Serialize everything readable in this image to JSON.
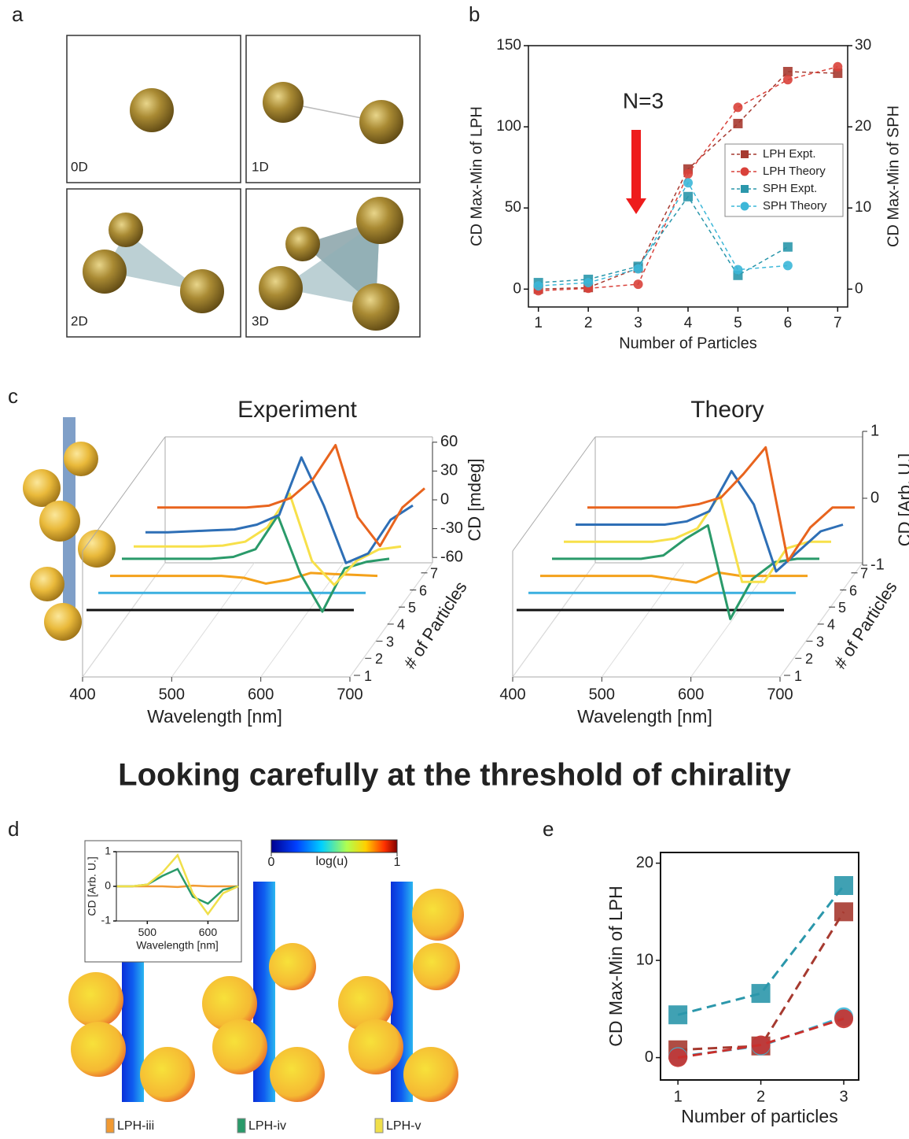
{
  "panel_labels": [
    "a",
    "b",
    "c",
    "d",
    "e"
  ],
  "headline": "Looking carefully at the threshold of chirality",
  "panel_a": {
    "labels": [
      "0D",
      "1D",
      "2D",
      "3D"
    ]
  },
  "panel_d": {
    "colorbar": {
      "ticks": [
        0,
        1
      ],
      "label": "log(u)"
    }
  },
  "chart_data": [
    {
      "type": "line",
      "xlabel": "Number of Particles",
      "ylabel": "CD Max-Min of LPH",
      "y2label": "CD Max-Min of SPH",
      "annotation": "N=3",
      "legend": "right",
      "x": [
        1,
        2,
        3,
        4,
        5,
        6,
        7
      ],
      "xlim": [
        0.8,
        7.2
      ],
      "xticks": [
        1,
        2,
        3,
        4,
        5,
        6,
        7
      ],
      "ylim": [
        -11,
        150
      ],
      "yticks": [
        0,
        50,
        100,
        150
      ],
      "y2lim": [
        -2.2,
        30
      ],
      "y2ticks": [
        0,
        10,
        20,
        30
      ],
      "series": [
        {
          "name": "LPH Expt.",
          "color": "#a63a30",
          "marker": "square",
          "values": [
            0,
            1,
            13,
            74,
            102,
            134,
            133
          ]
        },
        {
          "name": "LPH Theory",
          "color": "#d9413a",
          "marker": "circle",
          "values": [
            -1,
            0.5,
            3,
            71,
            112,
            129,
            137
          ]
        },
        {
          "name": "SPH Expt.",
          "color": "#2b97ab",
          "marker": "square",
          "axis": "y2",
          "values": [
            0.8,
            1.2,
            2.8,
            11.4,
            1.7,
            5.2,
            null
          ]
        },
        {
          "name": "SPH Theory",
          "color": "#3cb7d8",
          "marker": "circle",
          "axis": "y2",
          "values": [
            0.4,
            0.8,
            2.5,
            13.1,
            2.4,
            2.9,
            null
          ]
        }
      ]
    },
    {
      "type": "line3d",
      "title": "Experiment",
      "xlabel": "Wavelength [nm]",
      "ylabel": "CD [mdeg]",
      "zlabel": "# of Particles",
      "x": [
        400,
        425,
        450,
        475,
        500,
        525,
        550,
        575,
        600,
        625,
        650,
        675,
        700
      ],
      "xticks": [
        400,
        500,
        600,
        700
      ],
      "yticks": [
        -60,
        -30,
        0,
        30,
        60
      ],
      "zticks": [
        1,
        2,
        3,
        4,
        5,
        6,
        7
      ],
      "series": [
        {
          "color": "#111111",
          "values": [
            0,
            0,
            0,
            0,
            0,
            0,
            0,
            0,
            0,
            0,
            0,
            0,
            0
          ]
        },
        {
          "color": "#3bb0e0",
          "values": [
            0,
            0,
            0,
            0,
            0,
            0,
            0,
            0,
            0,
            0,
            0,
            0,
            0
          ]
        },
        {
          "color": "#f4a11a",
          "values": [
            0,
            0,
            0,
            0,
            0,
            0,
            -2,
            -8,
            -4,
            3,
            2,
            1,
            0
          ]
        },
        {
          "color": "#2a9a6a",
          "values": [
            0,
            0,
            0,
            0,
            0,
            2,
            10,
            45,
            -15,
            -55,
            -10,
            -3,
            0
          ]
        },
        {
          "color": "#f7e04a",
          "values": [
            -5,
            -5,
            -5,
            -5,
            -4,
            0,
            15,
            50,
            -20,
            -45,
            -20,
            -8,
            -5
          ]
        },
        {
          "color": "#2e6fb6",
          "values": [
            -8,
            -8,
            -7,
            -6,
            -5,
            0,
            10,
            70,
            20,
            -40,
            -30,
            5,
            20
          ]
        },
        {
          "color": "#e8641e",
          "values": [
            0,
            0,
            0,
            0,
            0,
            2,
            10,
            30,
            65,
            -10,
            -40,
            0,
            20
          ]
        }
      ]
    },
    {
      "type": "line3d",
      "title": "Theory",
      "xlabel": "Wavelength [nm]",
      "ylabel": "CD [Arb. U.]",
      "zlabel": "# of Particles",
      "x": [
        400,
        425,
        450,
        475,
        500,
        525,
        550,
        575,
        600,
        625,
        650,
        675,
        700
      ],
      "xticks": [
        400,
        500,
        600,
        700
      ],
      "yticks": [
        -1,
        0,
        1
      ],
      "zticks": [
        1,
        2,
        3,
        4,
        5,
        6,
        7
      ],
      "series": [
        {
          "color": "#111111",
          "values": [
            0,
            0,
            0,
            0,
            0,
            0,
            0,
            0,
            0,
            0,
            0,
            0,
            0
          ]
        },
        {
          "color": "#3bb0e0",
          "values": [
            0,
            0,
            0,
            0,
            0,
            0,
            0,
            0,
            0,
            0,
            0,
            0,
            0
          ]
        },
        {
          "color": "#f4a11a",
          "values": [
            0,
            0,
            0,
            0,
            0,
            0,
            -0.05,
            -0.1,
            0.05,
            0,
            0,
            0,
            0
          ]
        },
        {
          "color": "#2a9a6a",
          "values": [
            0,
            0,
            0,
            0,
            0,
            0.05,
            0.3,
            0.5,
            -0.9,
            -0.3,
            -0.05,
            0,
            0
          ]
        },
        {
          "color": "#f7e04a",
          "values": [
            0,
            0,
            0,
            0,
            0,
            0.05,
            0.2,
            0.7,
            -0.6,
            -0.6,
            -0.1,
            0,
            0
          ]
        },
        {
          "color": "#2e6fb6",
          "values": [
            0,
            0,
            0,
            0,
            0,
            0.05,
            0.2,
            0.8,
            0.3,
            -0.7,
            -0.4,
            -0.1,
            0
          ]
        },
        {
          "color": "#e8641e",
          "values": [
            0,
            0,
            0,
            0,
            0,
            0.05,
            0.15,
            0.5,
            0.9,
            -0.8,
            -0.3,
            0,
            0
          ]
        }
      ]
    },
    {
      "type": "line",
      "xlabel": "Wavelength [nm]",
      "ylabel": "CD [Arb. U.]",
      "x": [
        450,
        475,
        500,
        525,
        550,
        575,
        600,
        625,
        650
      ],
      "xlim": [
        449,
        650
      ],
      "xticks": [
        500,
        600
      ],
      "ylim": [
        -1,
        1
      ],
      "yticks": [
        -1,
        0,
        1
      ],
      "series": [
        {
          "name": "LPH-iii",
          "color": "#f19a33",
          "values": [
            0,
            0,
            0,
            0,
            -0.02,
            0.02,
            0,
            0,
            0
          ]
        },
        {
          "name": "LPH-iv",
          "color": "#2a9a6a",
          "values": [
            0,
            0,
            0.05,
            0.3,
            0.5,
            -0.3,
            -0.5,
            -0.1,
            0
          ]
        },
        {
          "name": "LPH-v",
          "color": "#f0df4a",
          "values": [
            0,
            0,
            0.05,
            0.4,
            0.9,
            -0.2,
            -0.8,
            -0.2,
            0
          ]
        }
      ]
    },
    {
      "type": "line",
      "xlabel": "Number of particles",
      "ylabel": "CD Max-Min of LPH",
      "x": [
        1,
        2,
        3
      ],
      "xlim": [
        0.79,
        3.18
      ],
      "xticks": [
        1,
        2,
        3
      ],
      "ylim": [
        -2.3,
        21.1
      ],
      "yticks": [
        0,
        10,
        20
      ],
      "series": [
        {
          "color": "#2b97ab",
          "marker": "square",
          "size": 12,
          "values": [
            4.4,
            6.6,
            17.7
          ]
        },
        {
          "color": "#a63a30",
          "marker": "square",
          "size": 12,
          "values": [
            0.8,
            1.2,
            15
          ]
        },
        {
          "color": "#3cb7d8",
          "marker": "circle",
          "size": 12,
          "values": [
            0.1,
            1.2,
            4.2
          ]
        },
        {
          "color": "#c9302c",
          "marker": "circle",
          "size": 12,
          "values": [
            0,
            1.3,
            4
          ]
        }
      ]
    }
  ]
}
